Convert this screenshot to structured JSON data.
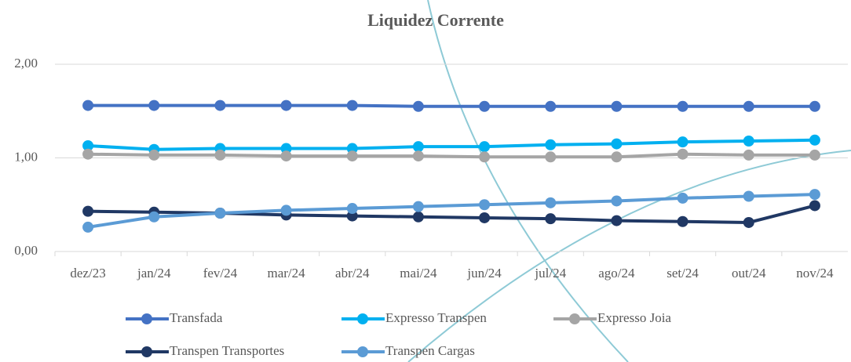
{
  "chart_data": {
    "type": "line",
    "title": "Liquidez Corrente",
    "categories": [
      "dez/23",
      "jan/24",
      "fev/24",
      "mar/24",
      "abr/24",
      "mai/24",
      "jun/24",
      "jul/24",
      "ago/24",
      "set/24",
      "out/24",
      "nov/24"
    ],
    "series": [
      {
        "name": "Transfada",
        "color": "#4472c4",
        "values": [
          1.56,
          1.56,
          1.56,
          1.56,
          1.56,
          1.55,
          1.55,
          1.55,
          1.55,
          1.55,
          1.55,
          1.55
        ]
      },
      {
        "name": "Expresso Transpen",
        "color": "#00b0f0",
        "values": [
          1.13,
          1.09,
          1.1,
          1.1,
          1.1,
          1.12,
          1.12,
          1.14,
          1.15,
          1.17,
          1.18,
          1.19
        ]
      },
      {
        "name": "Expresso Joia",
        "color": "#a5a5a5",
        "values": [
          1.04,
          1.03,
          1.03,
          1.02,
          1.02,
          1.02,
          1.01,
          1.01,
          1.01,
          1.04,
          1.03,
          1.03
        ]
      },
      {
        "name": "Transpen Transportes",
        "color": "#203864",
        "values": [
          0.43,
          0.42,
          0.41,
          0.39,
          0.38,
          0.37,
          0.36,
          0.35,
          0.33,
          0.32,
          0.31,
          0.49
        ]
      },
      {
        "name": "Transpen Cargas",
        "color": "#5b9bd5",
        "values": [
          0.26,
          0.37,
          0.41,
          0.44,
          0.46,
          0.48,
          0.5,
          0.52,
          0.54,
          0.57,
          0.59,
          0.61
        ]
      }
    ],
    "ylim": [
      0,
      2
    ],
    "yticks": [
      {
        "value": 0,
        "label": "0,00"
      },
      {
        "value": 1,
        "label": "1,00"
      },
      {
        "value": 2,
        "label": "2,00"
      }
    ],
    "grid": true
  }
}
